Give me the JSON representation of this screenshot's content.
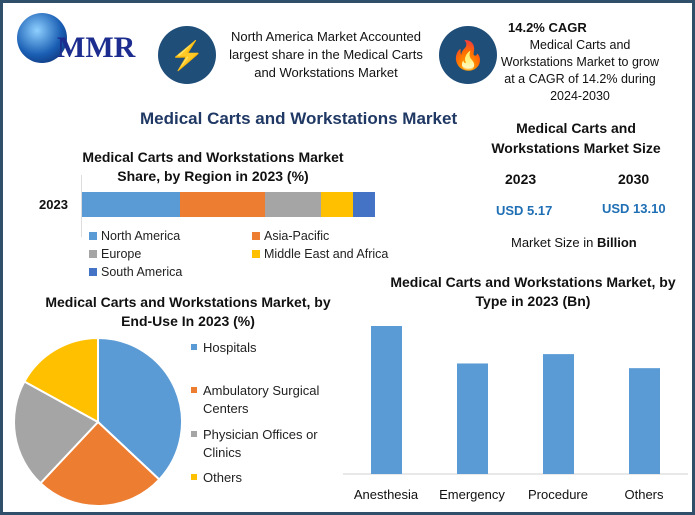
{
  "logo": {
    "text": "MMR"
  },
  "info1": {
    "icon": "lightning-icon",
    "text": "North America Market Accounted largest share in the Medical Carts and Workstations Market"
  },
  "info2": {
    "icon": "flame-icon",
    "title": "14.2% CAGR",
    "text": "Medical Carts and Workstations Market to grow at a CAGR of 14.2% during 2024-2030"
  },
  "main_title": "Medical Carts and Workstations Market",
  "size": {
    "title": "Medical Carts and Workstations Market Size",
    "years": [
      "2023",
      "2030"
    ],
    "values": [
      "USD 5.17",
      "USD 13.10"
    ],
    "note": "Market Size in ",
    "note_bold": "Billion"
  },
  "colors": {
    "blue": "#5b9bd5",
    "orange": "#ed7d31",
    "gray": "#a5a5a5",
    "yellow": "#ffc000",
    "darkblue": "#4472c4"
  },
  "chart_data": [
    {
      "type": "bar",
      "stacked": true,
      "orientation": "horizontal",
      "title": "Medical Carts and Workstations Market Share, by Region in 2023 (%)",
      "categories": [
        "2023"
      ],
      "series": [
        {
          "name": "North America",
          "values": [
            33.5
          ]
        },
        {
          "name": "Asia-Pacific",
          "values": [
            29
          ]
        },
        {
          "name": "Europe",
          "values": [
            19
          ]
        },
        {
          "name": "Middle East and Africa",
          "values": [
            11
          ]
        },
        {
          "name": "South America",
          "values": [
            7.5
          ]
        }
      ],
      "legend": "bottom"
    },
    {
      "type": "pie",
      "title": "Medical Carts and Workstations Market, by End-Use In 2023 (%)",
      "labels": [
        "Hospitals",
        "Ambulatory Surgical Centers",
        "Physician Offices or Clinics",
        "Others"
      ],
      "values": [
        37,
        25,
        21,
        17
      ],
      "legend": "right"
    },
    {
      "type": "bar",
      "title": "Medical Carts and Workstations Market, by Type in 2023 (Bn)",
      "categories": [
        "Anesthesia",
        "Emergency",
        "Procedure",
        "Others"
      ],
      "values": [
        1.58,
        1.18,
        1.28,
        1.13
      ],
      "grid": false
    }
  ]
}
